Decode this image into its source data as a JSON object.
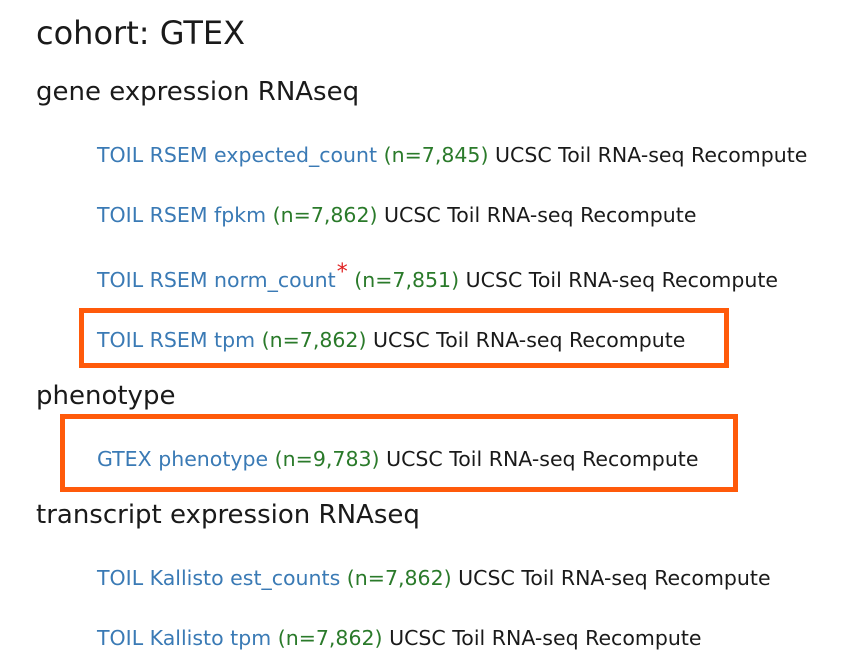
{
  "cohort": {
    "title": "cohort: GTEX"
  },
  "sections": [
    {
      "title": "gene expression RNAseq",
      "datasets": [
        {
          "name": "TOIL RSEM expected_count",
          "count": "(n=7,845)",
          "source": "UCSC Toil RNA-seq Recompute"
        },
        {
          "name": "TOIL RSEM fpkm",
          "count": "(n=7,862)",
          "source": "UCSC Toil RNA-seq Recompute"
        },
        {
          "name": "TOIL RSEM norm_count",
          "marker": "*",
          "count": "(n=7,851)",
          "source": "UCSC Toil RNA-seq Recompute"
        },
        {
          "name": "TOIL RSEM tpm",
          "count": "(n=7,862)",
          "source": "UCSC Toil RNA-seq Recompute"
        }
      ]
    },
    {
      "title": "phenotype",
      "datasets": [
        {
          "name": "GTEX phenotype",
          "count": "(n=9,783)",
          "source": "UCSC Toil RNA-seq Recompute"
        }
      ]
    },
    {
      "title": "transcript expression RNAseq",
      "datasets": [
        {
          "name": "TOIL Kallisto est_counts",
          "count": "(n=7,862)",
          "source": "UCSC Toil RNA-seq Recompute"
        },
        {
          "name": "TOIL Kallisto tpm",
          "count": "(n=7,862)",
          "source": "UCSC Toil RNA-seq Recompute"
        }
      ]
    }
  ],
  "colors": {
    "link": "#3a7ab5",
    "count": "#2a7a2a",
    "marker": "#e02020",
    "highlight": "#ff5a0a"
  }
}
